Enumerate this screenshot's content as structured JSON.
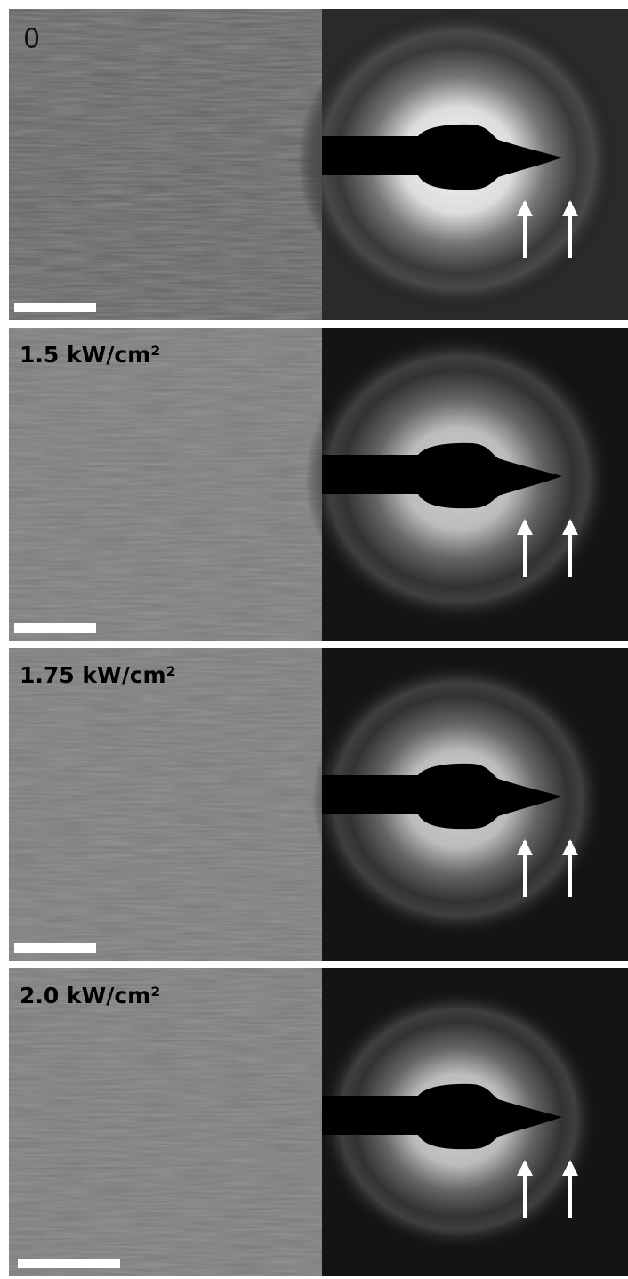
{
  "panels": [
    {
      "label": "0"
    },
    {
      "label": "1.5 kW/cm²"
    },
    {
      "label": "1.75 kW/cm²"
    },
    {
      "label": "2.0 kW/cm²"
    }
  ]
}
